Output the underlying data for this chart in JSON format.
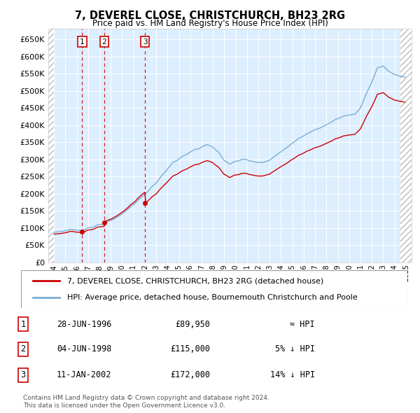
{
  "title": "7, DEVEREL CLOSE, CHRISTCHURCH, BH23 2RG",
  "subtitle": "Price paid vs. HM Land Registry's House Price Index (HPI)",
  "legend_property": "7, DEVEREL CLOSE, CHRISTCHURCH, BH23 2RG (detached house)",
  "legend_hpi": "HPI: Average price, detached house, Bournemouth Christchurch and Poole",
  "transactions": [
    {
      "num": 1,
      "date": "28-JUN-1996",
      "year": 1996.49,
      "price": 89950,
      "label": "≈ HPI"
    },
    {
      "num": 2,
      "date": "04-JUN-1998",
      "year": 1998.42,
      "price": 115000,
      "label": "5% ↓ HPI"
    },
    {
      "num": 3,
      "date": "11-JAN-2002",
      "year": 2002.03,
      "price": 172000,
      "label": "14% ↓ HPI"
    }
  ],
  "price_strings": [
    "£89,950",
    "£115,000",
    "£172,000"
  ],
  "footer_line1": "Contains HM Land Registry data © Crown copyright and database right 2024.",
  "footer_line2": "This data is licensed under the Open Government Licence v3.0.",
  "property_color": "#cc0000",
  "hpi_color": "#7aadd4",
  "background_plot": "#ddeeff",
  "ylim": [
    0,
    680000
  ],
  "yticks": [
    0,
    50000,
    100000,
    150000,
    200000,
    250000,
    300000,
    350000,
    400000,
    450000,
    500000,
    550000,
    600000,
    650000
  ],
  "xlim_start": 1993.5,
  "xlim_end": 2025.5,
  "data_start": 1994.0,
  "data_end": 2024.5
}
